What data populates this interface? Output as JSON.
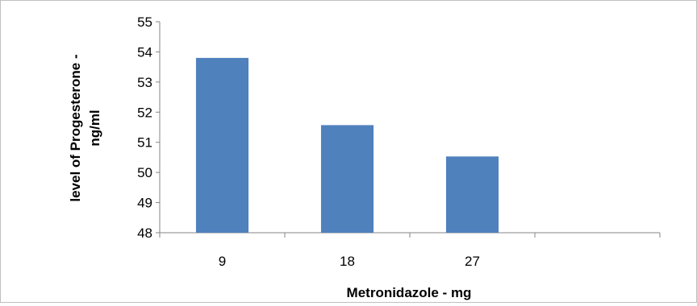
{
  "chart_data": {
    "type": "bar",
    "categories": [
      "9",
      "18",
      "27",
      ""
    ],
    "values": [
      53.8,
      51.57,
      50.53,
      null
    ],
    "xlabel": "Metronidazole - mg",
    "ylabel_lines": [
      "level of Progesterone -",
      "ng/ml"
    ],
    "ylim": [
      48,
      55
    ],
    "yticks": [
      48,
      49,
      50,
      51,
      52,
      53,
      54,
      55
    ],
    "bar_color": "#4F81BD",
    "grid": false,
    "legend": "none"
  }
}
